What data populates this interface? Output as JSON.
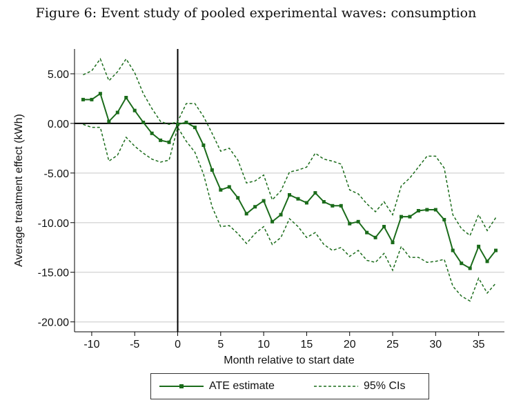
{
  "title": "Figure 6: Event study of pooled experimental waves: consumption",
  "legend": {
    "ate_label": "ATE estimate",
    "ci_label": "95% CIs"
  },
  "chart_data": {
    "type": "line",
    "xlabel": "Month relative to start date",
    "ylabel": "Average treatment effect (kWh)",
    "xlim": [
      -12,
      38
    ],
    "ylim": [
      -21,
      7.5
    ],
    "xticks": [
      -10,
      -5,
      0,
      5,
      10,
      15,
      20,
      25,
      30,
      35
    ],
    "yticks": [
      5,
      0,
      -5,
      -10,
      -15,
      -20
    ],
    "ytick_labels": [
      "5.00",
      "0.00",
      "-5.00",
      "-10.00",
      "-15.00",
      "-20.00"
    ],
    "grid": "horizontal",
    "reference_lines": {
      "x": 0,
      "y": 0
    },
    "colors": {
      "series": "#1a6b1a",
      "grid": "#d9d9d9",
      "axis": "#000000"
    },
    "x": [
      -11,
      -10,
      -9,
      -8,
      -7,
      -6,
      -5,
      -4,
      -3,
      -2,
      -1,
      0,
      1,
      2,
      3,
      4,
      5,
      6,
      7,
      8,
      9,
      10,
      11,
      12,
      13,
      14,
      15,
      16,
      17,
      18,
      19,
      20,
      21,
      22,
      23,
      24,
      25,
      26,
      27,
      28,
      29,
      30,
      31,
      32,
      33,
      34,
      35,
      36,
      37
    ],
    "series": [
      {
        "name": "ATE estimate",
        "style": "solid-markers",
        "values": [
          2.4,
          2.4,
          3.0,
          0.2,
          1.1,
          2.6,
          1.3,
          0.1,
          -1.0,
          -1.7,
          -1.9,
          -0.1,
          0.1,
          -0.4,
          -2.2,
          -4.7,
          -6.7,
          -6.4,
          -7.5,
          -9.1,
          -8.4,
          -7.8,
          -9.9,
          -9.2,
          -7.2,
          -7.6,
          -8.0,
          -7.0,
          -7.9,
          -8.3,
          -8.3,
          -10.1,
          -9.9,
          -11.0,
          -11.5,
          -10.4,
          -12.0,
          -9.4,
          -9.4,
          -8.8,
          -8.7,
          -8.7,
          -9.7,
          -12.8,
          -14.1,
          -14.6,
          -12.4,
          -13.9,
          -12.8
        ]
      },
      {
        "name": "95% CIs",
        "style": "dashed",
        "values": [
          4.9,
          5.3,
          6.5,
          4.3,
          5.2,
          6.5,
          5.1,
          3.0,
          1.5,
          0.2,
          -0.1,
          0.2,
          2.0,
          2.0,
          0.7,
          -1.0,
          -2.8,
          -2.5,
          -3.7,
          -6.0,
          -5.8,
          -5.2,
          -7.7,
          -6.8,
          -4.9,
          -4.7,
          -4.4,
          -3.0,
          -3.6,
          -3.8,
          -4.1,
          -6.7,
          -7.1,
          -8.1,
          -8.9,
          -7.9,
          -9.2,
          -6.3,
          -5.5,
          -4.4,
          -3.3,
          -3.3,
          -4.5,
          -9.2,
          -10.6,
          -11.3,
          -9.2,
          -10.8,
          -9.5
        ]
      },
      {
        "name": "95% CIs",
        "style": "dashed",
        "values": [
          -0.1,
          -0.4,
          -0.4,
          -3.8,
          -3.2,
          -1.4,
          -2.3,
          -3.0,
          -3.6,
          -3.9,
          -3.7,
          -0.4,
          -1.8,
          -2.9,
          -5.1,
          -8.4,
          -10.4,
          -10.3,
          -11.1,
          -12.1,
          -11.1,
          -10.4,
          -12.2,
          -11.5,
          -9.6,
          -10.4,
          -11.5,
          -11.0,
          -12.2,
          -12.8,
          -12.5,
          -13.4,
          -12.8,
          -13.8,
          -14.0,
          -13.1,
          -14.8,
          -12.4,
          -13.5,
          -13.5,
          -14.0,
          -13.9,
          -13.7,
          -16.4,
          -17.4,
          -17.9,
          -15.6,
          -17.1,
          -16.1
        ]
      }
    ]
  }
}
